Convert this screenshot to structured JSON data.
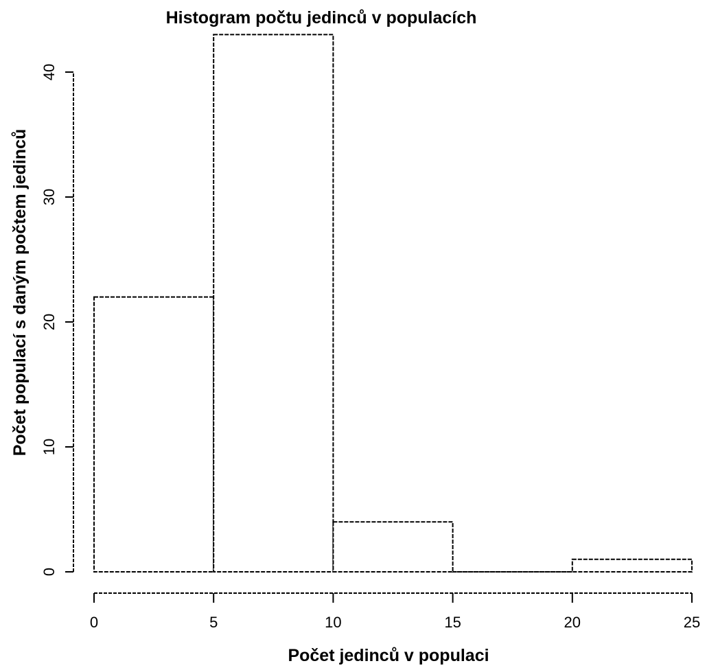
{
  "chart_data": {
    "type": "bar",
    "title": "Histogram počtu jedinců v populacích",
    "xlabel": "Počet jedinců v populaci",
    "ylabel": "Počet populací s daným počtem jedinců",
    "bins": [
      {
        "from": 0,
        "to": 5,
        "count": 22
      },
      {
        "from": 5,
        "to": 10,
        "count": 43
      },
      {
        "from": 10,
        "to": 15,
        "count": 4
      },
      {
        "from": 15,
        "to": 20,
        "count": 0
      },
      {
        "from": 20,
        "to": 25,
        "count": 1
      }
    ],
    "xlim": [
      0,
      25
    ],
    "ylim": [
      0,
      43
    ],
    "xticks": [
      0,
      5,
      10,
      15,
      20,
      25
    ],
    "yticks": [
      0,
      10,
      20,
      30,
      40
    ],
    "grid": false
  }
}
